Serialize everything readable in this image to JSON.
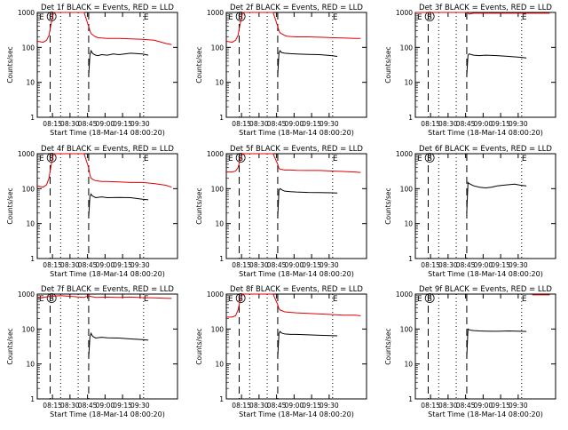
{
  "chart_data": [
    {
      "type": "line",
      "title": "Det 1f BLACK = Events, RED = LLD",
      "ylabel": "Counts/sec",
      "xlabel": "Start Time (18-Mar-14 08:00:20)",
      "x_ticks": [
        "08:15",
        "08:30",
        "08:45",
        "09:00",
        "09:15",
        "09:30"
      ],
      "y_ticks": [
        "1",
        "10",
        "100",
        "1000"
      ],
      "ylim": [
        1,
        1000
      ],
      "scale": "log",
      "markers": [
        "E",
        "S",
        "E"
      ],
      "series": [
        {
          "color": "#e00000",
          "x": [
            0,
            5,
            8,
            10,
            12,
            14,
            16,
            20,
            25,
            35,
            40,
            44,
            45,
            46,
            48,
            50,
            52,
            55,
            60,
            70,
            80,
            90,
            100,
            110,
            115
          ],
          "y": [
            150,
            140,
            160,
            220,
            500,
            1000,
            1000,
            1000,
            1000,
            1000,
            1000,
            400,
            300,
            250,
            220,
            200,
            190,
            185,
            180,
            180,
            175,
            170,
            160,
            130,
            120
          ]
        },
        {
          "color": "#000000",
          "x": [
            44,
            45,
            46,
            47,
            48,
            50,
            52,
            55,
            60,
            65,
            70,
            80,
            90,
            95
          ],
          "y": [
            15,
            60,
            80,
            70,
            65,
            60,
            58,
            62,
            60,
            65,
            62,
            68,
            65,
            60
          ]
        }
      ]
    },
    {
      "type": "line",
      "title": "Det 2f BLACK = Events, RED = LLD",
      "ylabel": "Counts/sec",
      "xlabel": "Start Time (18-Mar-14 08:00:20)",
      "x_ticks": [
        "08:15",
        "08:30",
        "08:45",
        "09:00",
        "09:15",
        "09:30"
      ],
      "y_ticks": [
        "1",
        "10",
        "100",
        "1000"
      ],
      "ylim": [
        1,
        1000
      ],
      "scale": "log",
      "markers": [
        "E",
        "S",
        "E"
      ],
      "series": [
        {
          "color": "#e00000",
          "x": [
            0,
            5,
            8,
            10,
            12,
            14,
            16,
            20,
            25,
            35,
            40,
            44,
            45,
            46,
            48,
            50,
            52,
            55,
            60,
            70,
            80,
            90,
            100,
            110,
            115
          ],
          "y": [
            150,
            140,
            160,
            220,
            500,
            1000,
            1000,
            1000,
            1000,
            1000,
            1000,
            400,
            300,
            260,
            240,
            220,
            210,
            205,
            200,
            200,
            195,
            190,
            185,
            180,
            180
          ]
        },
        {
          "color": "#000000",
          "x": [
            44,
            45,
            46,
            47,
            48,
            50,
            55,
            60,
            70,
            80,
            90,
            95
          ],
          "y": [
            15,
            70,
            80,
            72,
            70,
            68,
            66,
            65,
            63,
            62,
            58,
            55
          ]
        }
      ]
    },
    {
      "type": "line",
      "title": "Det 3f BLACK = Events, RED = LLD",
      "ylabel": "Counts/sec",
      "xlabel": "Start Time (18-Mar-14 08:00:20)",
      "x_ticks": [
        "08:15",
        "08:30",
        "08:45",
        "09:00",
        "09:15",
        "09:30"
      ],
      "y_ticks": [
        "1",
        "10",
        "100",
        "1000"
      ],
      "ylim": [
        1,
        1000
      ],
      "scale": "log",
      "markers": [
        "E",
        "S",
        "E"
      ],
      "series": [
        {
          "color": "#e00000",
          "x": [
            0,
            5,
            44,
            46,
            50,
            60,
            70,
            80,
            90,
            100,
            110,
            115
          ],
          "y": [
            1000,
            1000,
            1000,
            900,
            950,
            950,
            950,
            950,
            950,
            950,
            950,
            950
          ]
        },
        {
          "color": "#000000",
          "x": [
            44,
            45,
            46,
            48,
            50,
            55,
            60,
            70,
            80,
            90,
            95
          ],
          "y": [
            15,
            60,
            65,
            62,
            60,
            58,
            60,
            58,
            55,
            52,
            50
          ]
        }
      ]
    },
    {
      "type": "line",
      "title": "Det 4f BLACK = Events, RED = LLD",
      "ylabel": "Counts/sec",
      "xlabel": "Start Time (18-Mar-14 08:00:20)",
      "x_ticks": [
        "08:15",
        "08:30",
        "08:45",
        "09:00",
        "09:15",
        "09:30"
      ],
      "y_ticks": [
        "1",
        "10",
        "100",
        "1000"
      ],
      "ylim": [
        1,
        1000
      ],
      "scale": "log",
      "markers": [
        "E",
        "S",
        "E"
      ],
      "series": [
        {
          "color": "#e00000",
          "x": [
            0,
            5,
            8,
            10,
            12,
            14,
            16,
            20,
            25,
            35,
            40,
            44,
            45,
            46,
            48,
            50,
            52,
            55,
            60,
            70,
            80,
            90,
            100,
            110,
            115
          ],
          "y": [
            120,
            110,
            130,
            200,
            500,
            1000,
            1000,
            1000,
            1000,
            1000,
            1000,
            400,
            250,
            200,
            180,
            170,
            165,
            160,
            160,
            155,
            150,
            150,
            140,
            125,
            110
          ]
        },
        {
          "color": "#000000",
          "x": [
            44,
            45,
            46,
            47,
            48,
            50,
            55,
            60,
            70,
            80,
            90,
            95
          ],
          "y": [
            15,
            60,
            70,
            62,
            60,
            55,
            58,
            55,
            56,
            55,
            50,
            48
          ]
        }
      ]
    },
    {
      "type": "line",
      "title": "Det 5f BLACK = Events, RED = LLD",
      "ylabel": "Counts/sec",
      "xlabel": "Start Time (18-Mar-14 08:00:20)",
      "x_ticks": [
        "08:15",
        "08:30",
        "08:45",
        "09:00",
        "09:15",
        "09:30"
      ],
      "y_ticks": [
        "1",
        "10",
        "100",
        "1000"
      ],
      "ylim": [
        1,
        1000
      ],
      "scale": "log",
      "markers": [
        "E",
        "S",
        "E"
      ],
      "series": [
        {
          "color": "#e00000",
          "x": [
            0,
            5,
            8,
            10,
            12,
            14,
            16,
            20,
            25,
            35,
            40,
            44,
            45,
            46,
            48,
            50,
            55,
            60,
            70,
            80,
            90,
            100,
            110,
            115
          ],
          "y": [
            300,
            300,
            320,
            400,
            700,
            1000,
            1000,
            1000,
            1000,
            1000,
            1000,
            500,
            380,
            360,
            350,
            340,
            340,
            335,
            330,
            330,
            320,
            310,
            300,
            290
          ]
        },
        {
          "color": "#000000",
          "x": [
            44,
            45,
            46,
            47,
            48,
            50,
            55,
            60,
            70,
            80,
            90,
            95
          ],
          "y": [
            15,
            90,
            100,
            95,
            90,
            85,
            82,
            80,
            78,
            77,
            76,
            75
          ]
        }
      ]
    },
    {
      "type": "line",
      "title": "Det 6f BLACK = Events, RED = LLD",
      "ylabel": "Counts/sec",
      "xlabel": "Start Time (18-Mar-14 08:00:20)",
      "x_ticks": [
        "08:15",
        "08:30",
        "08:45",
        "09:00",
        "09:15",
        "09:30"
      ],
      "y_ticks": [
        "1",
        "10",
        "100",
        "1000"
      ],
      "ylim": [
        1,
        1000
      ],
      "scale": "log",
      "markers": [
        "E",
        "S",
        "E"
      ],
      "series": [
        {
          "color": "#000000",
          "x": [
            44,
            45,
            46,
            48,
            50,
            55,
            60,
            65,
            70,
            75,
            80,
            85,
            90,
            95
          ],
          "y": [
            20,
            150,
            140,
            130,
            120,
            110,
            105,
            110,
            120,
            125,
            130,
            135,
            125,
            120
          ]
        }
      ]
    },
    {
      "type": "line",
      "title": "Det 7f BLACK = Events, RED = LLD",
      "ylabel": "Counts/sec",
      "xlabel": "Start Time (18-Mar-14 08:00:20)",
      "x_ticks": [
        "08:15",
        "08:30",
        "08:45",
        "09:00",
        "09:15",
        "09:30"
      ],
      "y_ticks": [
        "1",
        "10",
        "100",
        "1000"
      ],
      "ylim": [
        1,
        1000
      ],
      "scale": "log",
      "markers": [
        "E",
        "S",
        "E"
      ],
      "series": [
        {
          "color": "#e00000",
          "x": [
            0,
            5,
            10,
            20,
            30,
            40,
            44,
            46,
            50,
            60,
            70,
            80,
            90,
            100,
            110,
            115
          ],
          "y": [
            750,
            800,
            850,
            900,
            850,
            800,
            900,
            850,
            800,
            820,
            800,
            820,
            790,
            780,
            760,
            750
          ]
        },
        {
          "color": "#000000",
          "x": [
            44,
            45,
            46,
            47,
            48,
            50,
            55,
            60,
            70,
            80,
            90,
            95
          ],
          "y": [
            15,
            60,
            75,
            65,
            60,
            55,
            58,
            56,
            55,
            52,
            50,
            48
          ]
        }
      ]
    },
    {
      "type": "line",
      "title": "Det 8f BLACK = Events, RED = LLD",
      "ylabel": "Counts/sec",
      "xlabel": "Start Time (18-Mar-14 08:00:20)",
      "x_ticks": [
        "08:15",
        "08:30",
        "08:45",
        "09:00",
        "09:15",
        "09:30"
      ],
      "y_ticks": [
        "1",
        "10",
        "100",
        "1000"
      ],
      "ylim": [
        1,
        1000
      ],
      "scale": "log",
      "markers": [
        "E",
        "S",
        "E"
      ],
      "series": [
        {
          "color": "#e00000",
          "x": [
            0,
            5,
            8,
            10,
            12,
            14,
            16,
            20,
            25,
            35,
            40,
            44,
            45,
            46,
            48,
            50,
            55,
            60,
            70,
            80,
            90,
            100,
            110,
            115
          ],
          "y": [
            220,
            220,
            240,
            350,
            700,
            1000,
            1000,
            1000,
            1000,
            1000,
            1000,
            500,
            380,
            350,
            330,
            310,
            300,
            290,
            280,
            270,
            260,
            250,
            250,
            240
          ]
        },
        {
          "color": "#000000",
          "x": [
            44,
            45,
            46,
            47,
            48,
            50,
            55,
            60,
            70,
            80,
            90,
            95
          ],
          "y": [
            15,
            75,
            85,
            78,
            75,
            72,
            70,
            70,
            68,
            66,
            65,
            64
          ]
        }
      ]
    },
    {
      "type": "line",
      "title": "Det 9f BLACK = Events, RED = LLD",
      "ylabel": "Counts/sec",
      "xlabel": "Start Time (18-Mar-14 08:00:20)",
      "x_ticks": [
        "08:15",
        "08:30",
        "08:45",
        "09:00",
        "09:15",
        "09:30"
      ],
      "y_ticks": [
        "1",
        "10",
        "100",
        "1000"
      ],
      "ylim": [
        1,
        1000
      ],
      "scale": "log",
      "markers": [
        "E",
        "S",
        "E"
      ],
      "series": [
        {
          "color": "#e00000",
          "x": [
            100,
            105,
            110,
            115
          ],
          "y": [
            950,
            960,
            950,
            950
          ]
        },
        {
          "color": "#000000",
          "x": [
            44,
            45,
            46,
            48,
            50,
            55,
            60,
            70,
            80,
            90,
            95
          ],
          "y": [
            15,
            100,
            95,
            92,
            90,
            88,
            87,
            86,
            88,
            86,
            85
          ]
        }
      ]
    }
  ]
}
